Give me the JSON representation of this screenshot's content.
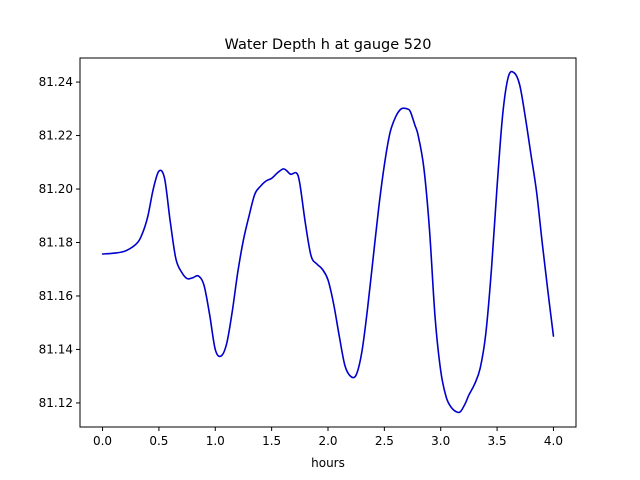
{
  "chart_data": {
    "type": "line",
    "title": "Water Depth h at gauge 520",
    "xlabel": "hours",
    "ylabel": "",
    "xlim": [
      -0.2,
      4.2
    ],
    "ylim": [
      81.111,
      81.249
    ],
    "xticks": [
      0.0,
      0.5,
      1.0,
      1.5,
      2.0,
      2.5,
      3.0,
      3.5,
      4.0
    ],
    "xtick_labels": [
      "0.0",
      "0.5",
      "1.0",
      "1.5",
      "2.0",
      "2.5",
      "3.0",
      "3.5",
      "4.0"
    ],
    "yticks": [
      81.12,
      81.14,
      81.16,
      81.18,
      81.2,
      81.22,
      81.24
    ],
    "ytick_labels": [
      "81.12",
      "81.14",
      "81.16",
      "81.18",
      "81.20",
      "81.22",
      "81.24"
    ],
    "grid": false,
    "series": [
      {
        "color": "#0000cc",
        "x": [
          0.0,
          0.1,
          0.2,
          0.3,
          0.35,
          0.4,
          0.45,
          0.5,
          0.55,
          0.6,
          0.65,
          0.7,
          0.75,
          0.8,
          0.85,
          0.9,
          0.95,
          1.0,
          1.05,
          1.1,
          1.15,
          1.2,
          1.25,
          1.3,
          1.35,
          1.4,
          1.45,
          1.5,
          1.55,
          1.6,
          1.63,
          1.67,
          1.72,
          1.75,
          1.8,
          1.85,
          1.9,
          1.95,
          2.0,
          2.05,
          2.1,
          2.15,
          2.2,
          2.25,
          2.3,
          2.35,
          2.4,
          2.45,
          2.5,
          2.55,
          2.6,
          2.65,
          2.7,
          2.73,
          2.77,
          2.8,
          2.85,
          2.9,
          2.95,
          3.0,
          3.05,
          3.1,
          3.15,
          3.18,
          3.22,
          3.25,
          3.3,
          3.35,
          3.4,
          3.45,
          3.5,
          3.55,
          3.6,
          3.65,
          3.7,
          3.75,
          3.8,
          3.85,
          3.9,
          3.95,
          4.0
        ],
        "y": [
          81.1757,
          81.176,
          81.1768,
          81.1795,
          81.183,
          81.1895,
          81.2,
          81.2067,
          81.204,
          81.188,
          81.174,
          81.169,
          81.1665,
          81.1668,
          81.1675,
          81.164,
          81.153,
          81.14,
          81.1375,
          81.142,
          81.154,
          81.169,
          81.181,
          81.19,
          81.198,
          81.201,
          81.203,
          81.204,
          81.206,
          81.2075,
          81.207,
          81.2055,
          81.206,
          81.202,
          81.187,
          81.175,
          81.172,
          81.17,
          81.166,
          81.157,
          81.145,
          81.134,
          81.13,
          81.1305,
          81.139,
          81.155,
          81.174,
          81.193,
          81.209,
          81.221,
          81.227,
          81.23,
          81.23,
          81.229,
          81.224,
          81.22,
          81.208,
          81.185,
          81.152,
          81.132,
          81.122,
          81.118,
          81.1165,
          81.117,
          81.12,
          81.123,
          81.127,
          81.133,
          81.146,
          81.17,
          81.201,
          81.228,
          81.242,
          81.2435,
          81.239,
          81.227,
          81.213,
          81.199,
          81.18,
          81.162,
          81.145
        ]
      }
    ]
  }
}
